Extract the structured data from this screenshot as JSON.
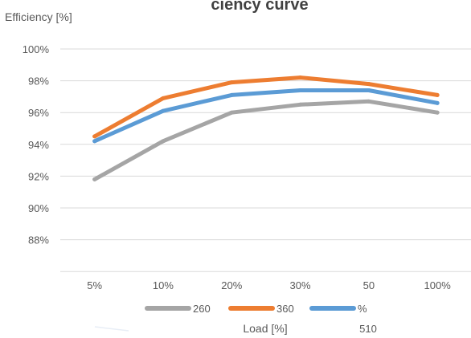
{
  "chart_data": {
    "type": "line",
    "title": "ciency curve",
    "ylabel": "Efficiency [%]",
    "xlabel": "Load [%]",
    "categories": [
      "5%",
      "10%",
      "20%",
      "30%",
      "50",
      "100%"
    ],
    "y_tick_labels": [
      "88%",
      "90%",
      "92%",
      "94%",
      "96%",
      "98%",
      "100%"
    ],
    "ylim": [
      87,
      101
    ],
    "grid": true,
    "legend_position": "bottom",
    "extra_label": "510",
    "series": [
      {
        "name": "260",
        "color": "#a5a5a5",
        "values": [
          91.8,
          94.2,
          96.0,
          96.5,
          96.7,
          96.0
        ]
      },
      {
        "name": "360",
        "color": "#ed7d31",
        "values": [
          94.5,
          96.9,
          97.9,
          98.2,
          97.8,
          97.1
        ]
      },
      {
        "name": "%",
        "color": "#5b9bd5",
        "values": [
          94.2,
          96.1,
          97.1,
          97.4,
          97.4,
          96.6
        ]
      }
    ]
  }
}
